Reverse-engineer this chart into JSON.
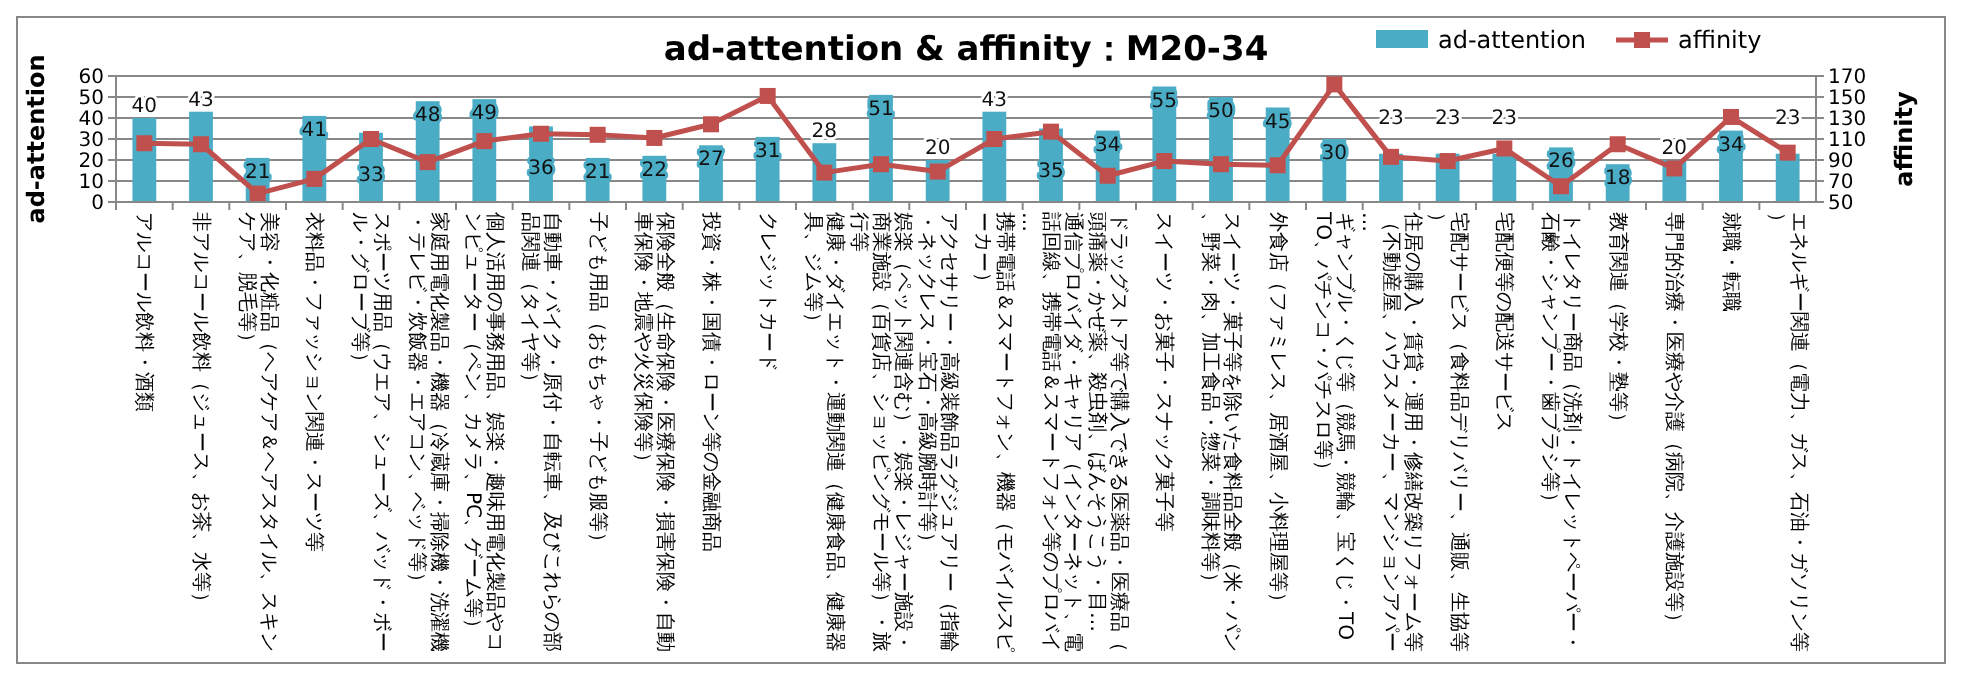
{
  "chart_data": {
    "type": "bar",
    "title": "ad-attention & affinity：M20-34",
    "ylabel": "ad-attention",
    "y2label": "affinity",
    "categories": [
      "アルコール飲料・酒類",
      "非アルコール飲料（ジュース、お茶、水等）",
      "美容・化粧品（ヘアケア＆ヘアスタイル、スキンケア、脱毛等）",
      "衣料品・ファッション関連・スーツ等",
      "スポーツ用品（ウエア、シューズ、バッド・ボール・グローブ等）",
      "家庭用電化製品・機器（冷蔵庫・掃除機・洗濯機・テレビ・炊飯器・エアコン、ベッド等）",
      "個人活用の事務用品、娯楽・趣味用電化製品やコンピューター（ペン、カメラ、PC、ゲーム等）",
      "自動車・バイク・原付・自転車、及びこれらの部品関連（タイヤ等）",
      "子ども用品（おもちゃ・子ども服等）",
      "保険全般（生命保険・医療保険・損害保険・自動車保険・地震や火災保険等）",
      "投資・株・国債・ローン等の金融商品",
      "クレジットカード",
      "健康・ダイエット・運動関連（健康食品、健康器具、ジム等）",
      "娯楽（ペット関連含む）・娯楽・レジャー施設・商業施設（百貨店、ショッピングモール等）・旅行等",
      "アクセサリー・高級装飾品ラグジュアリー（指輪・ネックレス・宝石・高級腕時計等）",
      "携帯電話＆スマートフォン、機器（モバイルスピーカー）",
      "通信プロバイダ・キャリア（インターネット、電話回線、携帯電話＆スマートフォン等のプロバイ…",
      "ドラッグストア等で購入できる医薬品・医療品（頭痛薬・かぜ薬、殺虫剤、ばんそうこう・目…",
      "スイーツ・お菓子・スナック菓子等",
      "スイーツ・菓子等を除いた食料品全般（米・パン、野菜・肉、加工食品・惣菜・調味料等）",
      "外食店（ファミレス、居酒屋、小料理屋等）",
      "ギャンブル・くじ等（競馬・競輪、宝くじ・TOTO、パチンコ・パチスロ等）",
      "住居の購入・賃貸・運用・修繕改築リフォーム等（不動産屋、ハウスメーカー、マンションアパー…",
      "宅配サービス（食料品デリバリー、通販、生協等）",
      "宅配便等の配送サービス",
      "トイレタリー商品（洗剤・トイレットペーパー・石鹸・シャンプー・歯ブラシ等）",
      "教育関連（学校・塾等）",
      "専門的治療・医療や介護（病院、介護施設等）",
      "就職・転職",
      "エネルギー関連（電力、ガス、石油・ガソリン等）"
    ],
    "ylim": [
      0,
      60
    ],
    "yticks": [
      0,
      10,
      20,
      30,
      40,
      50,
      60
    ],
    "y2lim": [
      50,
      170
    ],
    "y2ticks": [
      50,
      70,
      90,
      110,
      130,
      150,
      170
    ],
    "grid": "y",
    "legend": "top right",
    "series": [
      {
        "name": "ad-attention",
        "color": "#4bacc6",
        "values": [
          40,
          43,
          21,
          41,
          33,
          48,
          49,
          36,
          21,
          22,
          27,
          31,
          28,
          51,
          20,
          43,
          35,
          34,
          55,
          50,
          45,
          30,
          23,
          23,
          23,
          26,
          18,
          20,
          34,
          23
        ],
        "value_labels": [
          "40",
          "43",
          "21",
          "41",
          "33",
          "48",
          "49",
          "36",
          "21",
          "22",
          "27",
          "31",
          "28",
          "51",
          "20",
          "43",
          "35",
          "34",
          "55",
          "50",
          "45",
          "30",
          "23",
          "23",
          "23",
          "26",
          "18",
          "20",
          "34",
          "23"
        ]
      },
      {
        "name": "affinity",
        "type": "line",
        "axis": "y2",
        "color": "#c0504d",
        "marker": "square",
        "values": [
          106,
          105,
          58,
          72,
          110,
          88,
          108,
          115,
          114,
          111,
          124,
          151,
          78,
          86,
          79,
          110,
          117,
          75,
          89,
          86,
          85,
          162,
          93,
          89,
          101,
          65,
          105,
          82,
          131,
          97
        ]
      }
    ]
  }
}
